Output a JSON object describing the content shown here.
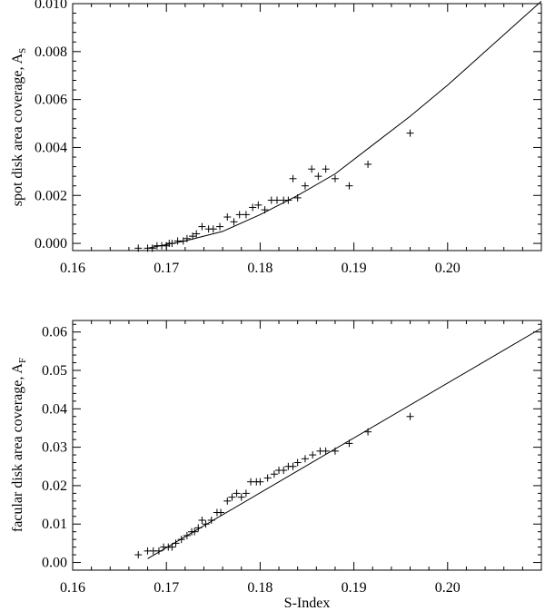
{
  "chart_data": [
    {
      "type": "scatter",
      "title": "",
      "xlabel": "",
      "ylabel": "spot disk area coverage, A",
      "ylabel_sub": "S",
      "xlim": [
        0.16,
        0.21
      ],
      "ylim": [
        -0.0003,
        0.01
      ],
      "x_ticks": [
        0.16,
        0.17,
        0.18,
        0.19,
        0.2
      ],
      "x_tick_labels": [
        "0.16",
        "0.17",
        "0.18",
        "0.19",
        "0.20"
      ],
      "y_ticks": [
        0,
        0.002,
        0.004,
        0.006,
        0.008,
        0.01
      ],
      "y_tick_labels": [
        "0.000",
        "0.002",
        "0.004",
        "0.006",
        "0.008",
        "0.010"
      ],
      "grid": false,
      "series": [
        {
          "marker": "plus",
          "x": [
            0.167,
            0.168,
            0.1685,
            0.169,
            0.1695,
            0.17,
            0.1703,
            0.1706,
            0.1712,
            0.1718,
            0.1722,
            0.1728,
            0.1732,
            0.1738,
            0.1745,
            0.175,
            0.1757,
            0.1765,
            0.1772,
            0.1778,
            0.1785,
            0.1792,
            0.1798,
            0.1805,
            0.1812,
            0.1818,
            0.1825,
            0.183,
            0.1835,
            0.184,
            0.1848,
            0.1855,
            0.1862,
            0.187,
            0.188,
            0.1895,
            0.1915,
            0.196
          ],
          "y": [
            -0.0002,
            -0.0002,
            -0.0002,
            -0.0001,
            -0.0001,
            -0.0001,
            0.0,
            0.0,
            0.0001,
            0.0001,
            0.0002,
            0.0003,
            0.0004,
            0.0007,
            0.0006,
            0.0006,
            0.0007,
            0.0011,
            0.0009,
            0.0012,
            0.0012,
            0.0015,
            0.0016,
            0.0014,
            0.0018,
            0.0018,
            0.0018,
            0.0018,
            0.0027,
            0.0019,
            0.0024,
            0.0031,
            0.0028,
            0.0031,
            0.0027,
            0.0024,
            0.0033,
            0.0046
          ]
        },
        {
          "type": "line",
          "x": [
            0.168,
            0.172,
            0.176,
            0.18,
            0.184,
            0.188,
            0.192,
            0.196,
            0.2,
            0.204,
            0.208,
            0.21
          ],
          "y": [
            -0.0002,
            0.0001,
            0.0005,
            0.0012,
            0.002,
            0.0029,
            0.0041,
            0.0053,
            0.0066,
            0.008,
            0.0094,
            0.0101
          ]
        }
      ]
    },
    {
      "type": "scatter",
      "title": "",
      "xlabel": "S-Index",
      "ylabel": "facular disk area coverage, A",
      "ylabel_sub": "F",
      "xlim": [
        0.16,
        0.21
      ],
      "ylim": [
        -0.002,
        0.063
      ],
      "x_ticks": [
        0.16,
        0.17,
        0.18,
        0.19,
        0.2
      ],
      "x_tick_labels": [
        "0.16",
        "0.17",
        "0.18",
        "0.19",
        "0.20"
      ],
      "y_ticks": [
        0,
        0.01,
        0.02,
        0.03,
        0.04,
        0.05,
        0.06
      ],
      "y_tick_labels": [
        "0.00",
        "0.01",
        "0.02",
        "0.03",
        "0.04",
        "0.05",
        "0.06"
      ],
      "grid": false,
      "series": [
        {
          "marker": "plus",
          "x": [
            0.167,
            0.168,
            0.1686,
            0.1692,
            0.1697,
            0.1702,
            0.1706,
            0.171,
            0.1716,
            0.1722,
            0.1727,
            0.173,
            0.1734,
            0.1738,
            0.1742,
            0.1748,
            0.1754,
            0.1758,
            0.1765,
            0.177,
            0.1775,
            0.178,
            0.1785,
            0.179,
            0.1796,
            0.18,
            0.1808,
            0.1815,
            0.182,
            0.1825,
            0.183,
            0.1835,
            0.184,
            0.1848,
            0.1856,
            0.1864,
            0.187,
            0.188,
            0.1895,
            0.1915,
            0.196
          ],
          "y": [
            0.002,
            0.003,
            0.003,
            0.003,
            0.004,
            0.004,
            0.004,
            0.005,
            0.006,
            0.007,
            0.008,
            0.008,
            0.009,
            0.011,
            0.01,
            0.011,
            0.013,
            0.013,
            0.016,
            0.017,
            0.018,
            0.017,
            0.018,
            0.021,
            0.021,
            0.021,
            0.022,
            0.023,
            0.024,
            0.024,
            0.025,
            0.025,
            0.026,
            0.027,
            0.028,
            0.029,
            0.029,
            0.029,
            0.031,
            0.034,
            0.038
          ]
        },
        {
          "type": "line",
          "x": [
            0.168,
            0.21
          ],
          "y": [
            0.001,
            0.061
          ]
        }
      ]
    }
  ]
}
